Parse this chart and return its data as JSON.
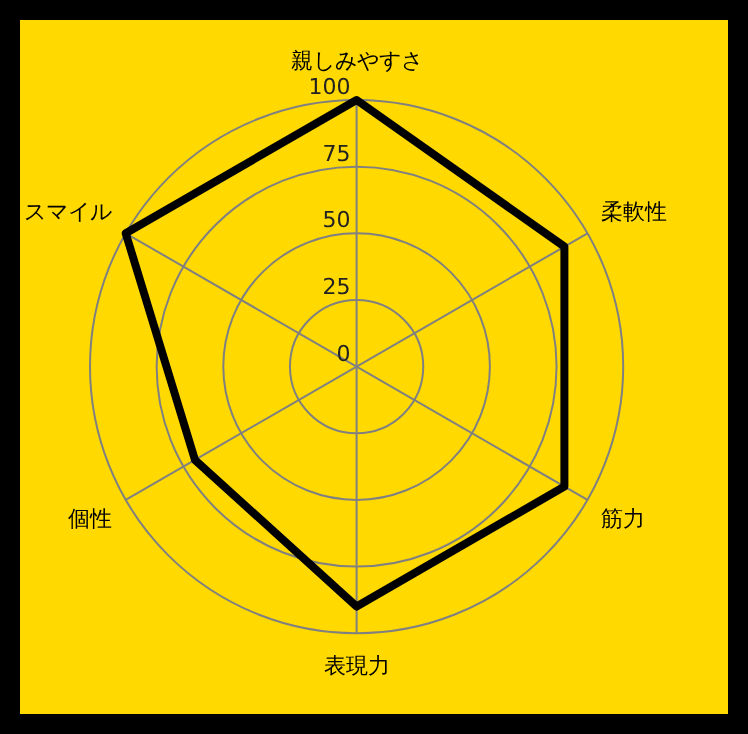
{
  "chart_data": {
    "type": "radar",
    "categories": [
      "親しみやすさ",
      "柔軟性",
      "筋力",
      "表現力",
      "個性",
      "スマイル"
    ],
    "series": [
      {
        "color": "#000000",
        "values": [
          100,
          90,
          90,
          90,
          70,
          100
        ]
      }
    ],
    "ylim": [
      0,
      100
    ],
    "yticks": [
      0,
      25,
      50,
      75,
      100
    ],
    "grid": true,
    "marker": "none",
    "line_style": "solid"
  }
}
